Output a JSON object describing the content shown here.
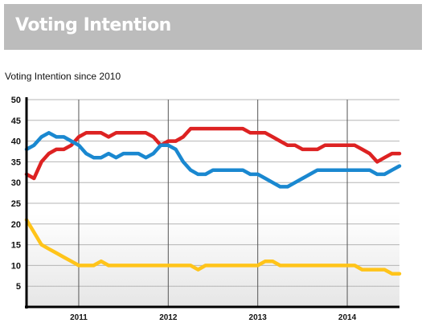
{
  "header": {
    "title": "Voting Intention"
  },
  "chart_data": {
    "type": "line",
    "title": "Voting Intention since 2010",
    "xlabel": "",
    "ylabel": "",
    "x_ticks": [
      "2011",
      "2012",
      "2013",
      "2014"
    ],
    "xlim": [
      "2010-06",
      "2014-08"
    ],
    "ylim": [
      0,
      50
    ],
    "y_ticks": [
      5,
      10,
      15,
      20,
      25,
      30,
      35,
      40,
      45,
      50
    ],
    "grid": {
      "horizontal": true,
      "vertical": true
    },
    "legend": "none",
    "series": [
      {
        "color": "#dd2222",
        "points": [
          [
            "2010-06",
            32
          ],
          [
            "2010-07",
            31
          ],
          [
            "2010-08",
            35
          ],
          [
            "2010-09",
            37
          ],
          [
            "2010-10",
            38
          ],
          [
            "2010-11",
            38
          ],
          [
            "2010-12",
            39
          ],
          [
            "2011-01",
            41
          ],
          [
            "2011-02",
            42
          ],
          [
            "2011-03",
            42
          ],
          [
            "2011-04",
            42
          ],
          [
            "2011-05",
            41
          ],
          [
            "2011-06",
            42
          ],
          [
            "2011-07",
            42
          ],
          [
            "2011-08",
            42
          ],
          [
            "2011-09",
            42
          ],
          [
            "2011-10",
            42
          ],
          [
            "2011-11",
            41
          ],
          [
            "2011-12",
            39
          ],
          [
            "2012-01",
            40
          ],
          [
            "2012-02",
            40
          ],
          [
            "2012-03",
            41
          ],
          [
            "2012-04",
            43
          ],
          [
            "2012-05",
            43
          ],
          [
            "2012-06",
            43
          ],
          [
            "2012-07",
            43
          ],
          [
            "2012-08",
            43
          ],
          [
            "2012-09",
            43
          ],
          [
            "2012-10",
            43
          ],
          [
            "2012-11",
            43
          ],
          [
            "2012-12",
            42
          ],
          [
            "2013-01",
            42
          ],
          [
            "2013-02",
            42
          ],
          [
            "2013-03",
            41
          ],
          [
            "2013-04",
            40
          ],
          [
            "2013-05",
            39
          ],
          [
            "2013-06",
            39
          ],
          [
            "2013-07",
            38
          ],
          [
            "2013-08",
            38
          ],
          [
            "2013-09",
            38
          ],
          [
            "2013-10",
            39
          ],
          [
            "2013-11",
            39
          ],
          [
            "2013-12",
            39
          ],
          [
            "2014-01",
            39
          ],
          [
            "2014-02",
            39
          ],
          [
            "2014-03",
            38
          ],
          [
            "2014-04",
            37
          ],
          [
            "2014-05",
            35
          ],
          [
            "2014-06",
            36
          ],
          [
            "2014-07",
            37
          ],
          [
            "2014-08",
            37
          ]
        ]
      },
      {
        "color": "#1a88d0",
        "points": [
          [
            "2010-06",
            38
          ],
          [
            "2010-07",
            39
          ],
          [
            "2010-08",
            41
          ],
          [
            "2010-09",
            42
          ],
          [
            "2010-10",
            41
          ],
          [
            "2010-11",
            41
          ],
          [
            "2010-12",
            40
          ],
          [
            "2011-01",
            39
          ],
          [
            "2011-02",
            37
          ],
          [
            "2011-03",
            36
          ],
          [
            "2011-04",
            36
          ],
          [
            "2011-05",
            37
          ],
          [
            "2011-06",
            36
          ],
          [
            "2011-07",
            37
          ],
          [
            "2011-08",
            37
          ],
          [
            "2011-09",
            37
          ],
          [
            "2011-10",
            36
          ],
          [
            "2011-11",
            37
          ],
          [
            "2011-12",
            39
          ],
          [
            "2012-01",
            39
          ],
          [
            "2012-02",
            38
          ],
          [
            "2012-03",
            35
          ],
          [
            "2012-04",
            33
          ],
          [
            "2012-05",
            32
          ],
          [
            "2012-06",
            32
          ],
          [
            "2012-07",
            33
          ],
          [
            "2012-08",
            33
          ],
          [
            "2012-09",
            33
          ],
          [
            "2012-10",
            33
          ],
          [
            "2012-11",
            33
          ],
          [
            "2012-12",
            32
          ],
          [
            "2013-01",
            32
          ],
          [
            "2013-02",
            31
          ],
          [
            "2013-03",
            30
          ],
          [
            "2013-04",
            29
          ],
          [
            "2013-05",
            29
          ],
          [
            "2013-06",
            30
          ],
          [
            "2013-07",
            31
          ],
          [
            "2013-08",
            32
          ],
          [
            "2013-09",
            33
          ],
          [
            "2013-10",
            33
          ],
          [
            "2013-11",
            33
          ],
          [
            "2013-12",
            33
          ],
          [
            "2014-01",
            33
          ],
          [
            "2014-02",
            33
          ],
          [
            "2014-03",
            33
          ],
          [
            "2014-04",
            33
          ],
          [
            "2014-05",
            32
          ],
          [
            "2014-06",
            32
          ],
          [
            "2014-07",
            33
          ],
          [
            "2014-08",
            34
          ]
        ]
      },
      {
        "color": "#ffc41a",
        "points": [
          [
            "2010-06",
            21
          ],
          [
            "2010-07",
            18
          ],
          [
            "2010-08",
            15
          ],
          [
            "2010-09",
            14
          ],
          [
            "2010-10",
            13
          ],
          [
            "2010-11",
            12
          ],
          [
            "2010-12",
            11
          ],
          [
            "2011-01",
            10
          ],
          [
            "2011-02",
            10
          ],
          [
            "2011-03",
            10
          ],
          [
            "2011-04",
            11
          ],
          [
            "2011-05",
            10
          ],
          [
            "2011-06",
            10
          ],
          [
            "2011-07",
            10
          ],
          [
            "2011-08",
            10
          ],
          [
            "2011-09",
            10
          ],
          [
            "2011-10",
            10
          ],
          [
            "2011-11",
            10
          ],
          [
            "2011-12",
            10
          ],
          [
            "2012-01",
            10
          ],
          [
            "2012-02",
            10
          ],
          [
            "2012-03",
            10
          ],
          [
            "2012-04",
            10
          ],
          [
            "2012-05",
            9
          ],
          [
            "2012-06",
            10
          ],
          [
            "2012-07",
            10
          ],
          [
            "2012-08",
            10
          ],
          [
            "2012-09",
            10
          ],
          [
            "2012-10",
            10
          ],
          [
            "2012-11",
            10
          ],
          [
            "2012-12",
            10
          ],
          [
            "2013-01",
            10
          ],
          [
            "2013-02",
            11
          ],
          [
            "2013-03",
            11
          ],
          [
            "2013-04",
            10
          ],
          [
            "2013-05",
            10
          ],
          [
            "2013-06",
            10
          ],
          [
            "2013-07",
            10
          ],
          [
            "2013-08",
            10
          ],
          [
            "2013-09",
            10
          ],
          [
            "2013-10",
            10
          ],
          [
            "2013-11",
            10
          ],
          [
            "2013-12",
            10
          ],
          [
            "2014-01",
            10
          ],
          [
            "2014-02",
            10
          ],
          [
            "2014-03",
            9
          ],
          [
            "2014-04",
            9
          ],
          [
            "2014-05",
            9
          ],
          [
            "2014-06",
            9
          ],
          [
            "2014-07",
            8
          ],
          [
            "2014-08",
            8
          ]
        ]
      }
    ]
  }
}
